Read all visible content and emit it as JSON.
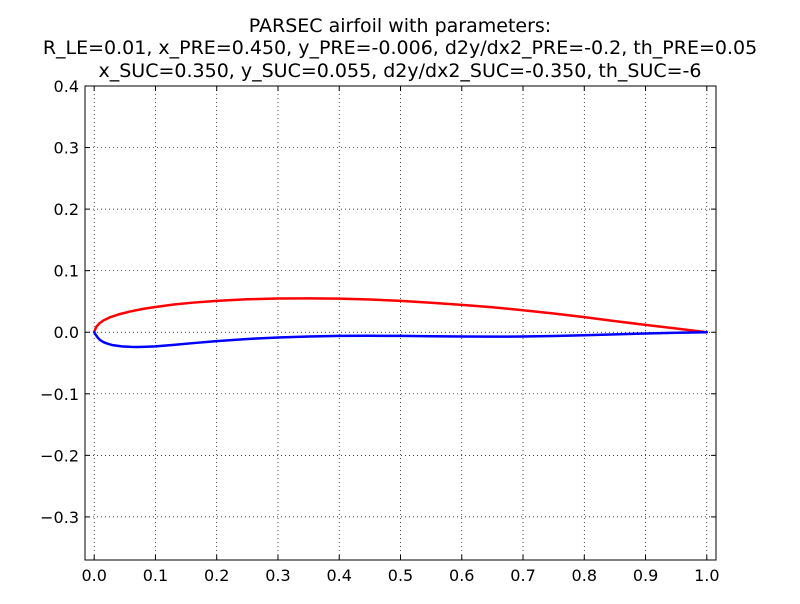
{
  "chart_data": {
    "type": "line",
    "title_lines": [
      "PARSEC airfoil with parameters:",
      "R_LE=0.01, x_PRE=0.450, y_PRE=-0.006, d2y/dx2_PRE=-0.2, th_PRE=0.05",
      "x_SUC=0.350, y_SUC=0.055, d2y/dx2_SUC=-0.350, th_SUC=-6"
    ],
    "xlabel": "",
    "ylabel": "",
    "xlim": [
      -0.015,
      1.015
    ],
    "ylim": [
      -0.37,
      0.4
    ],
    "grid": true,
    "x_ticks": [
      0.0,
      0.1,
      0.2,
      0.3,
      0.4,
      0.5,
      0.6,
      0.7,
      0.8,
      0.9,
      1.0
    ],
    "x_tick_labels": [
      "0.0",
      "0.1",
      "0.2",
      "0.3",
      "0.4",
      "0.5",
      "0.6",
      "0.7",
      "0.8",
      "0.9",
      "1.0"
    ],
    "y_ticks": [
      0.4,
      0.3,
      0.2,
      0.1,
      0.0,
      -0.1,
      -0.2,
      -0.3
    ],
    "y_tick_labels": [
      "0.4",
      "0.3",
      "0.2",
      "0.1",
      "0.0",
      "−0.1",
      "−0.2",
      "−0.3"
    ],
    "series": [
      {
        "color": "#ff0000",
        "x": [
          0.0,
          0.003,
          0.008,
          0.015,
          0.025,
          0.04,
          0.06,
          0.08,
          0.1,
          0.13,
          0.16,
          0.2,
          0.25,
          0.3,
          0.35,
          0.4,
          0.45,
          0.5,
          0.55,
          0.6,
          0.65,
          0.7,
          0.75,
          0.8,
          0.85,
          0.9,
          0.95,
          1.0
        ],
        "y": [
          0.0,
          0.008,
          0.014,
          0.019,
          0.024,
          0.029,
          0.034,
          0.038,
          0.041,
          0.045,
          0.048,
          0.051,
          0.0535,
          0.0548,
          0.055,
          0.0545,
          0.0532,
          0.051,
          0.048,
          0.0445,
          0.0405,
          0.0358,
          0.0305,
          0.0245,
          0.018,
          0.012,
          0.006,
          0.0
        ]
      },
      {
        "color": "#0000ff",
        "x": [
          0.0,
          0.003,
          0.006,
          0.01,
          0.015,
          0.02,
          0.03,
          0.045,
          0.06,
          0.07,
          0.08,
          0.1,
          0.13,
          0.16,
          0.2,
          0.25,
          0.3,
          0.35,
          0.4,
          0.45,
          0.5,
          0.55,
          0.6,
          0.65,
          0.7,
          0.75,
          0.8,
          0.85,
          0.9,
          0.95,
          1.0
        ],
        "y": [
          0.0,
          -0.005,
          -0.009,
          -0.013,
          -0.016,
          -0.018,
          -0.021,
          -0.023,
          -0.0238,
          -0.024,
          -0.0238,
          -0.023,
          -0.0205,
          -0.0178,
          -0.0145,
          -0.011,
          -0.0085,
          -0.007,
          -0.006,
          -0.0058,
          -0.006,
          -0.0065,
          -0.007,
          -0.0072,
          -0.007,
          -0.0062,
          -0.005,
          -0.0035,
          -0.002,
          -0.0008,
          0.0
        ]
      }
    ]
  }
}
